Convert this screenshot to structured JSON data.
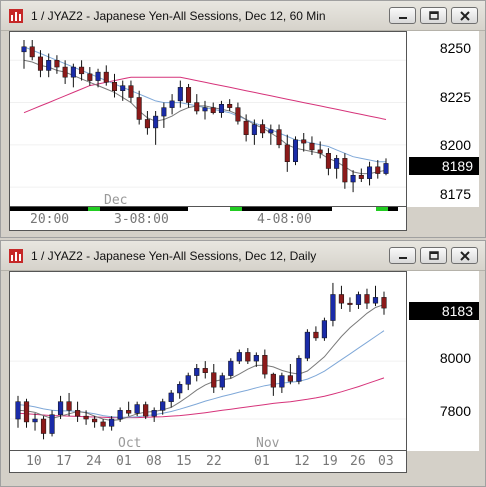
{
  "colors": {
    "up_candle": "#1a2ba8",
    "down_candle": "#8b1a1a",
    "ma_fast": "#7a7a7a",
    "ma_mid": "#7fa8d8",
    "ma_slow": "#d6337a",
    "session_green": "#22cc22",
    "session_black": "#000000"
  },
  "window1": {
    "title": "1 / JYAZ2 - Japanese Yen-All Sessions, Dec 12, 60 Min",
    "price_label": "8189",
    "y_ticks": [
      "8250",
      "8225",
      "8200",
      "8175"
    ],
    "month_label": "Dec",
    "x_ticks": [
      "20:00",
      "3-08:00",
      "4-08:00"
    ]
  },
  "window2": {
    "title": "1 / JYAZ2 - Japanese Yen-All Sessions, Dec 12, Daily",
    "price_label": "8183",
    "y_ticks": [
      "8000",
      "7800"
    ],
    "month_labels": [
      "Oct",
      "Nov"
    ],
    "x_ticks": [
      "10",
      "17",
      "24",
      "01",
      "08",
      "15",
      "22",
      "01",
      "12",
      "19",
      "26",
      "03"
    ]
  },
  "chart_data": [
    {
      "type": "candlestick",
      "title": "1 / JYAZ2 - Japanese Yen-All Sessions, Dec 12, 60 Min",
      "ylim": [
        8165,
        8262
      ],
      "y_ticks": [
        8250,
        8225,
        8200,
        8175
      ],
      "x_tick_labels": [
        "20:00",
        "3-08:00",
        "4-08:00"
      ],
      "last_price": 8189,
      "candles": [
        {
          "o": 8255,
          "h": 8262,
          "l": 8245,
          "c": 8258
        },
        {
          "o": 8258,
          "h": 8262,
          "l": 8250,
          "c": 8252
        },
        {
          "o": 8252,
          "h": 8256,
          "l": 8240,
          "c": 8244
        },
        {
          "o": 8244,
          "h": 8254,
          "l": 8240,
          "c": 8250
        },
        {
          "o": 8250,
          "h": 8253,
          "l": 8242,
          "c": 8246
        },
        {
          "o": 8246,
          "h": 8250,
          "l": 8236,
          "c": 8240
        },
        {
          "o": 8240,
          "h": 8248,
          "l": 8234,
          "c": 8246
        },
        {
          "o": 8246,
          "h": 8250,
          "l": 8238,
          "c": 8242
        },
        {
          "o": 8242,
          "h": 8246,
          "l": 8235,
          "c": 8238
        },
        {
          "o": 8238,
          "h": 8245,
          "l": 8234,
          "c": 8243
        },
        {
          "o": 8243,
          "h": 8247,
          "l": 8235,
          "c": 8237
        },
        {
          "o": 8237,
          "h": 8242,
          "l": 8228,
          "c": 8232
        },
        {
          "o": 8232,
          "h": 8238,
          "l": 8226,
          "c": 8235
        },
        {
          "o": 8235,
          "h": 8238,
          "l": 8225,
          "c": 8228
        },
        {
          "o": 8228,
          "h": 8232,
          "l": 8212,
          "c": 8215
        },
        {
          "o": 8215,
          "h": 8220,
          "l": 8206,
          "c": 8210
        },
        {
          "o": 8210,
          "h": 8220,
          "l": 8200,
          "c": 8217
        },
        {
          "o": 8217,
          "h": 8225,
          "l": 8210,
          "c": 8222
        },
        {
          "o": 8222,
          "h": 8230,
          "l": 8218,
          "c": 8226
        },
        {
          "o": 8226,
          "h": 8238,
          "l": 8222,
          "c": 8234
        },
        {
          "o": 8234,
          "h": 8236,
          "l": 8222,
          "c": 8225
        },
        {
          "o": 8225,
          "h": 8230,
          "l": 8218,
          "c": 8220
        },
        {
          "o": 8220,
          "h": 8226,
          "l": 8215,
          "c": 8222
        },
        {
          "o": 8222,
          "h": 8225,
          "l": 8218,
          "c": 8219
        },
        {
          "o": 8219,
          "h": 8226,
          "l": 8216,
          "c": 8224
        },
        {
          "o": 8224,
          "h": 8227,
          "l": 8220,
          "c": 8222
        },
        {
          "o": 8222,
          "h": 8225,
          "l": 8212,
          "c": 8214
        },
        {
          "o": 8214,
          "h": 8218,
          "l": 8202,
          "c": 8206
        },
        {
          "o": 8206,
          "h": 8215,
          "l": 8200,
          "c": 8212
        },
        {
          "o": 8212,
          "h": 8215,
          "l": 8204,
          "c": 8207
        },
        {
          "o": 8207,
          "h": 8212,
          "l": 8200,
          "c": 8209
        },
        {
          "o": 8209,
          "h": 8212,
          "l": 8198,
          "c": 8200
        },
        {
          "o": 8200,
          "h": 8206,
          "l": 8184,
          "c": 8190
        },
        {
          "o": 8190,
          "h": 8205,
          "l": 8188,
          "c": 8203
        },
        {
          "o": 8203,
          "h": 8207,
          "l": 8196,
          "c": 8201
        },
        {
          "o": 8201,
          "h": 8205,
          "l": 8194,
          "c": 8197
        },
        {
          "o": 8197,
          "h": 8202,
          "l": 8192,
          "c": 8195
        },
        {
          "o": 8195,
          "h": 8198,
          "l": 8182,
          "c": 8186
        },
        {
          "o": 8186,
          "h": 8194,
          "l": 8180,
          "c": 8192
        },
        {
          "o": 8192,
          "h": 8195,
          "l": 8174,
          "c": 8178
        },
        {
          "o": 8178,
          "h": 8185,
          "l": 8172,
          "c": 8182
        },
        {
          "o": 8182,
          "h": 8186,
          "l": 8178,
          "c": 8180
        },
        {
          "o": 8180,
          "h": 8190,
          "l": 8176,
          "c": 8187
        },
        {
          "o": 8187,
          "h": 8191,
          "l": 8180,
          "c": 8183
        },
        {
          "o": 8183,
          "h": 8192,
          "l": 8182,
          "c": 8189
        }
      ],
      "ma_fast": [
        8250,
        8249,
        8247,
        8246,
        8244,
        8243,
        8241,
        8239,
        8237,
        8235,
        8233,
        8231,
        8228,
        8225,
        8220,
        8216,
        8214,
        8215,
        8217,
        8220,
        8222,
        8223,
        8223,
        8222,
        8221,
        8220,
        8218,
        8215,
        8212,
        8210,
        8207,
        8204,
        8200,
        8198,
        8197,
        8196,
        8195,
        8192,
        8190,
        8187,
        8184,
        8183,
        8183,
        8184,
        8185
      ],
      "ma_mid": [
        8258,
        8256,
        8254,
        8252,
        8250,
        8248,
        8246,
        8244,
        8242,
        8240,
        8238,
        8236,
        8234,
        8232,
        8230,
        8228,
        8226,
        8225,
        8225,
        8225,
        8224,
        8223,
        8222,
        8221,
        8220,
        8219,
        8217,
        8215,
        8213,
        8211,
        8209,
        8207,
        8205,
        8203,
        8202,
        8201,
        8200,
        8199,
        8197,
        8195,
        8193,
        8192,
        8191,
        8190,
        8190
      ],
      "ma_slow": [
        8219,
        8221,
        8223,
        8225,
        8227,
        8229,
        8231,
        8233,
        8235,
        8236,
        8237,
        8238,
        8239,
        8240,
        8240,
        8240,
        8240,
        8240,
        8240,
        8240,
        8239,
        8238,
        8237,
        8236,
        8235,
        8234,
        8233,
        8232,
        8231,
        8230,
        8229,
        8228,
        8227,
        8226,
        8225,
        8224,
        8223,
        8222,
        8221,
        8220,
        8219,
        8218,
        8217,
        8216,
        8215
      ]
    },
    {
      "type": "candlestick",
      "title": "1 / JYAZ2 - Japanese Yen-All Sessions, Dec 12, Daily",
      "ylim": [
        7700,
        8280
      ],
      "y_ticks": [
        8000,
        7800
      ],
      "x_tick_labels": [
        "10",
        "17",
        "24",
        "01",
        "08",
        "15",
        "22",
        "01",
        "12",
        "19",
        "26",
        "03"
      ],
      "last_price": 8183,
      "candles": [
        {
          "o": 7800,
          "h": 7880,
          "l": 7770,
          "c": 7860
        },
        {
          "o": 7860,
          "h": 7870,
          "l": 7770,
          "c": 7790
        },
        {
          "o": 7790,
          "h": 7820,
          "l": 7760,
          "c": 7800
        },
        {
          "o": 7800,
          "h": 7810,
          "l": 7730,
          "c": 7750
        },
        {
          "o": 7750,
          "h": 7830,
          "l": 7740,
          "c": 7815
        },
        {
          "o": 7815,
          "h": 7880,
          "l": 7800,
          "c": 7860
        },
        {
          "o": 7860,
          "h": 7890,
          "l": 7810,
          "c": 7830
        },
        {
          "o": 7830,
          "h": 7860,
          "l": 7790,
          "c": 7810
        },
        {
          "o": 7810,
          "h": 7830,
          "l": 7780,
          "c": 7800
        },
        {
          "o": 7800,
          "h": 7810,
          "l": 7770,
          "c": 7790
        },
        {
          "o": 7790,
          "h": 7800,
          "l": 7760,
          "c": 7775
        },
        {
          "o": 7775,
          "h": 7810,
          "l": 7760,
          "c": 7800
        },
        {
          "o": 7800,
          "h": 7840,
          "l": 7790,
          "c": 7830
        },
        {
          "o": 7830,
          "h": 7860,
          "l": 7810,
          "c": 7820
        },
        {
          "o": 7820,
          "h": 7860,
          "l": 7810,
          "c": 7850
        },
        {
          "o": 7850,
          "h": 7860,
          "l": 7800,
          "c": 7810
        },
        {
          "o": 7810,
          "h": 7840,
          "l": 7790,
          "c": 7830
        },
        {
          "o": 7830,
          "h": 7870,
          "l": 7815,
          "c": 7860
        },
        {
          "o": 7860,
          "h": 7900,
          "l": 7840,
          "c": 7890
        },
        {
          "o": 7890,
          "h": 7930,
          "l": 7870,
          "c": 7920
        },
        {
          "o": 7920,
          "h": 7960,
          "l": 7900,
          "c": 7950
        },
        {
          "o": 7950,
          "h": 7990,
          "l": 7930,
          "c": 7975
        },
        {
          "o": 7975,
          "h": 8000,
          "l": 7940,
          "c": 7960
        },
        {
          "o": 7960,
          "h": 7990,
          "l": 7890,
          "c": 7910
        },
        {
          "o": 7910,
          "h": 7960,
          "l": 7900,
          "c": 7950
        },
        {
          "o": 7950,
          "h": 8010,
          "l": 7940,
          "c": 8000
        },
        {
          "o": 8000,
          "h": 8040,
          "l": 7990,
          "c": 8030
        },
        {
          "o": 8030,
          "h": 8045,
          "l": 7990,
          "c": 8000
        },
        {
          "o": 8000,
          "h": 8030,
          "l": 7980,
          "c": 8020
        },
        {
          "o": 8020,
          "h": 8040,
          "l": 7940,
          "c": 7955
        },
        {
          "o": 7955,
          "h": 7960,
          "l": 7880,
          "c": 7910
        },
        {
          "o": 7910,
          "h": 7960,
          "l": 7890,
          "c": 7950
        },
        {
          "o": 7950,
          "h": 7990,
          "l": 7920,
          "c": 7930
        },
        {
          "o": 7930,
          "h": 8020,
          "l": 7920,
          "c": 8010
        },
        {
          "o": 8010,
          "h": 8110,
          "l": 8000,
          "c": 8100
        },
        {
          "o": 8100,
          "h": 8120,
          "l": 8070,
          "c": 8080
        },
        {
          "o": 8080,
          "h": 8150,
          "l": 8070,
          "c": 8140
        },
        {
          "o": 8140,
          "h": 8270,
          "l": 8120,
          "c": 8230
        },
        {
          "o": 8230,
          "h": 8260,
          "l": 8180,
          "c": 8200
        },
        {
          "o": 8200,
          "h": 8220,
          "l": 8170,
          "c": 8195
        },
        {
          "o": 8195,
          "h": 8240,
          "l": 8180,
          "c": 8230
        },
        {
          "o": 8230,
          "h": 8250,
          "l": 8180,
          "c": 8200
        },
        {
          "o": 8200,
          "h": 8260,
          "l": 8190,
          "c": 8220
        },
        {
          "o": 8220,
          "h": 8240,
          "l": 8160,
          "c": 8183
        }
      ],
      "ma_fast": [
        7830,
        7828,
        7823,
        7812,
        7802,
        7810,
        7818,
        7826,
        7822,
        7810,
        7800,
        7795,
        7798,
        7808,
        7818,
        7824,
        7826,
        7832,
        7840,
        7858,
        7878,
        7900,
        7918,
        7930,
        7936,
        7940,
        7955,
        7972,
        7985,
        7986,
        7980,
        7968,
        7960,
        7955,
        7966,
        7990,
        8015,
        8050,
        8085,
        8115,
        8140,
        8165,
        8185,
        8195
      ],
      "ma_mid": [
        7850,
        7847,
        7842,
        7835,
        7830,
        7828,
        7828,
        7826,
        7823,
        7818,
        7812,
        7808,
        7806,
        7806,
        7808,
        7812,
        7815,
        7820,
        7826,
        7834,
        7843,
        7852,
        7862,
        7870,
        7878,
        7885,
        7893,
        7900,
        7908,
        7915,
        7920,
        7924,
        7927,
        7930,
        7938,
        7950,
        7965,
        7985,
        8005,
        8025,
        8045,
        8065,
        8085,
        8105
      ],
      "ma_slow": [
        7820,
        7818,
        7816,
        7814,
        7812,
        7811,
        7810,
        7809,
        7808,
        7807,
        7806,
        7805,
        7805,
        7805,
        7805,
        7806,
        7807,
        7808,
        7810,
        7812,
        7815,
        7818,
        7822,
        7826,
        7830,
        7834,
        7838,
        7842,
        7846,
        7850,
        7854,
        7857,
        7860,
        7864,
        7868,
        7873,
        7879,
        7886,
        7894,
        7903,
        7912,
        7922,
        7932,
        7942
      ]
    }
  ]
}
